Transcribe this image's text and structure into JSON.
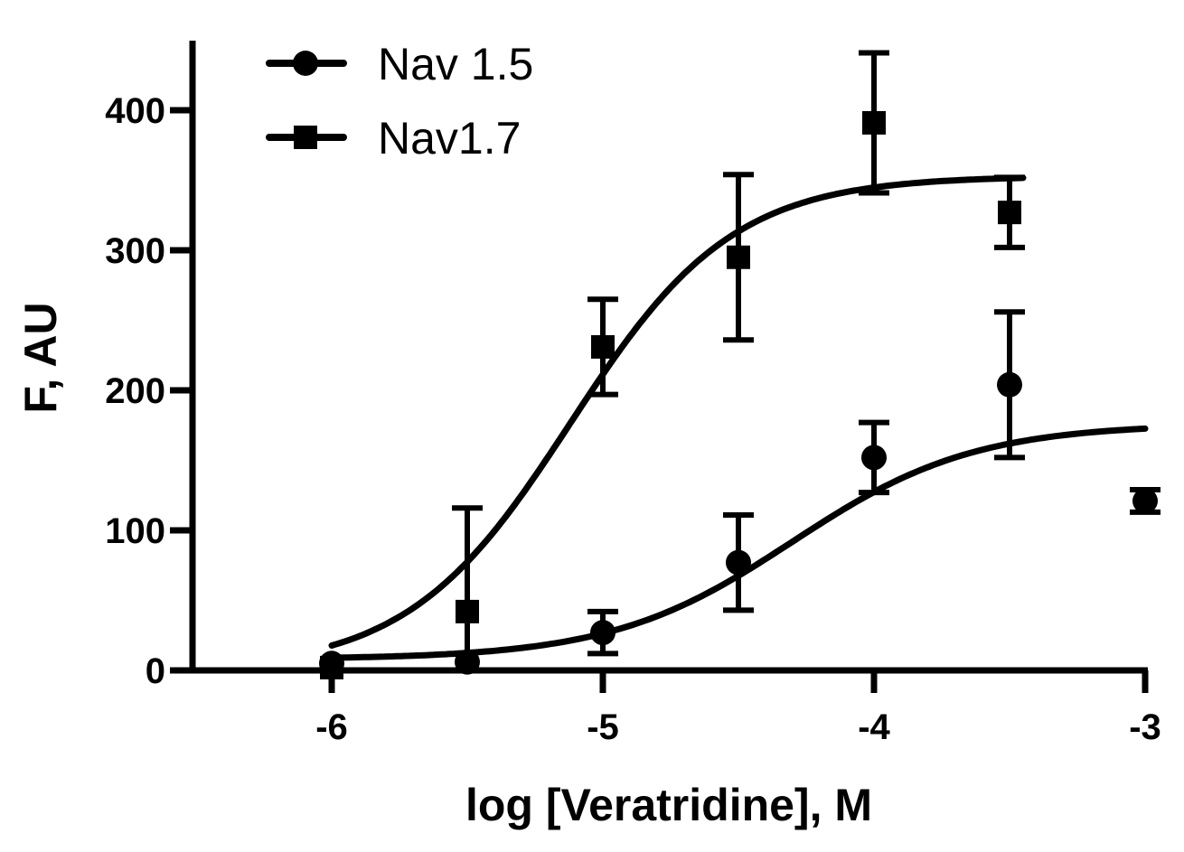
{
  "chart_data": {
    "type": "scatter",
    "title": "",
    "xlabel": "log [Veratridine], M",
    "ylabel": "F, AU",
    "xlim": [
      -6.5,
      -3
    ],
    "ylim": [
      0,
      450
    ],
    "x_ticks": [
      -6,
      -5,
      -4,
      -3
    ],
    "x_tick_labels": [
      "-6",
      "-5",
      "-4",
      "-3"
    ],
    "y_ticks": [
      0,
      100,
      200,
      300,
      400
    ],
    "y_tick_labels": [
      "0",
      "100",
      "200",
      "300",
      "400"
    ],
    "grid": false,
    "legend_position": "top-left",
    "series": [
      {
        "name": "Nav 1.5",
        "marker": "circle",
        "color": "#000000",
        "points": [
          {
            "x": -6.0,
            "y": 5,
            "err": 0
          },
          {
            "x": -5.5,
            "y": 6,
            "err": 0
          },
          {
            "x": -5.0,
            "y": 27,
            "err": 15
          },
          {
            "x": -4.5,
            "y": 77,
            "err": 34
          },
          {
            "x": -4.0,
            "y": 152,
            "err": 25
          },
          {
            "x": -3.5,
            "y": 204,
            "err": 52
          },
          {
            "x": -3.0,
            "y": 121,
            "err": 8
          }
        ],
        "fit": {
          "bottom": 8,
          "top": 176,
          "logEC50": -4.3,
          "hill": 1.3,
          "x_range": [
            -6.0,
            -3.0
          ]
        }
      },
      {
        "name": "Nav1.7",
        "marker": "square",
        "color": "#000000",
        "points": [
          {
            "x": -6.0,
            "y": 2,
            "err": 0
          },
          {
            "x": -5.5,
            "y": 42,
            "err": 74
          },
          {
            "x": -5.0,
            "y": 231,
            "err": 34
          },
          {
            "x": -4.5,
            "y": 295,
            "err": 59
          },
          {
            "x": -4.0,
            "y": 391,
            "err": 50
          },
          {
            "x": -3.5,
            "y": 327,
            "err": 25
          }
        ],
        "fit": {
          "bottom": 0,
          "top": 353,
          "logEC50": -5.12,
          "hill": 1.45,
          "x_range": [
            -6.0,
            -3.45
          ]
        }
      }
    ]
  }
}
